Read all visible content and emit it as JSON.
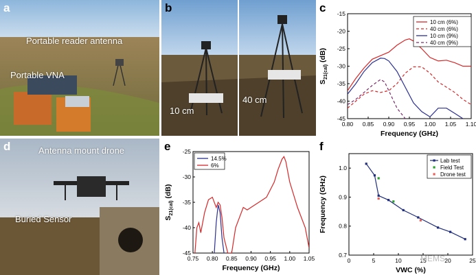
{
  "panels": {
    "a": {
      "label": "a",
      "annotations": [
        "Portable reader antenna",
        "Portable VNA"
      ]
    },
    "b": {
      "label": "b",
      "annotations": [
        "10 cm",
        "40 cm"
      ]
    },
    "c": {
      "label": "c"
    },
    "d": {
      "label": "d",
      "annotations": [
        "Antenna mount drone",
        "Buried Sensor"
      ]
    },
    "e": {
      "label": "e"
    },
    "f": {
      "label": "f"
    }
  },
  "watermark": "MEMS",
  "colors": {
    "red": "#d62728",
    "blue": "#2b2f8f",
    "purple": "#7a2a6a",
    "green": "#2ca02c",
    "pink": "#e8605a",
    "navy": "#1f2d7a"
  },
  "chart_data": [
    {
      "id": "c",
      "type": "line",
      "xlabel": "Frequency (GHz)",
      "ylabel": "S21(cal) (dB)",
      "xlim": [
        0.8,
        1.1
      ],
      "ylim": [
        -45,
        -15
      ],
      "xticks": [
        "0.80",
        "0.85",
        "0.90",
        "0.95",
        "1.00",
        "1.05",
        "1.10"
      ],
      "yticks": [
        "-15",
        "-20",
        "-25",
        "-30",
        "-35",
        "-40",
        "-45"
      ],
      "legend_position": "top-right",
      "series": [
        {
          "name": "10 cm (6%)",
          "color": "#d62728",
          "dash": false,
          "x": [
            0.8,
            0.82,
            0.84,
            0.86,
            0.88,
            0.9,
            0.92,
            0.94,
            0.95,
            0.96,
            0.98,
            1.0,
            1.02,
            1.04,
            1.06,
            1.08,
            1.1
          ],
          "y": [
            -37,
            -33.5,
            -30.5,
            -28,
            -27,
            -26,
            -24,
            -22.5,
            -22.2,
            -22.8,
            -25,
            -27.5,
            -28.5,
            -28.3,
            -29,
            -30,
            -30
          ]
        },
        {
          "name": "40 cm (6%)",
          "color": "#d62728",
          "dash": true,
          "x": [
            0.8,
            0.82,
            0.84,
            0.86,
            0.88,
            0.9,
            0.92,
            0.94,
            0.96,
            0.98,
            1.0,
            1.02,
            1.04,
            1.06,
            1.08,
            1.1
          ],
          "y": [
            -42,
            -40,
            -38,
            -37,
            -37.5,
            -37,
            -35,
            -32,
            -30.2,
            -30.2,
            -32,
            -34.5,
            -36,
            -37.5,
            -39.5,
            -41
          ]
        },
        {
          "name": "10 cm (9%)",
          "color": "#2b2f8f",
          "dash": false,
          "x": [
            0.8,
            0.82,
            0.84,
            0.86,
            0.88,
            0.89,
            0.9,
            0.92,
            0.94,
            0.96,
            0.98,
            1.0,
            1.02,
            1.04,
            1.06,
            1.08
          ],
          "y": [
            -38,
            -35,
            -31.5,
            -29,
            -27.7,
            -27.8,
            -28.5,
            -31.5,
            -36,
            -40.5,
            -43,
            -44.5,
            -42,
            -42,
            -43.5,
            -45
          ]
        },
        {
          "name": "40 cm (9%)",
          "color": "#7a2a6a",
          "dash": true,
          "x": [
            0.8,
            0.82,
            0.84,
            0.86,
            0.88,
            0.89,
            0.9,
            0.92,
            0.94
          ],
          "y": [
            -41,
            -39.5,
            -37.5,
            -35.5,
            -33.8,
            -34.5,
            -37,
            -42,
            -45
          ]
        }
      ]
    },
    {
      "id": "e",
      "type": "line",
      "xlabel": "Frequency (GHz)",
      "ylabel": "S21(cal) (dB)",
      "xlim": [
        0.75,
        1.05
      ],
      "ylim": [
        -45,
        -25
      ],
      "xticks": [
        "0.75",
        "0.80",
        "0.85",
        "0.90",
        "0.95",
        "1.00",
        "1.05"
      ],
      "yticks": [
        "-25",
        "-30",
        "-35",
        "-40",
        "-45"
      ],
      "legend_position": "top-left",
      "series": [
        {
          "name": "14.5%",
          "color": "#2b2f8f",
          "x": [
            0.805,
            0.81,
            0.815,
            0.82,
            0.825,
            0.83
          ],
          "y": [
            -45,
            -39,
            -35.5,
            -37,
            -42,
            -45
          ]
        },
        {
          "name": "6%",
          "color": "#d62728",
          "x": [
            0.755,
            0.76,
            0.765,
            0.77,
            0.78,
            0.79,
            0.8,
            0.81,
            0.815,
            0.82,
            0.825,
            0.83,
            0.84,
            0.85,
            0.86,
            0.87,
            0.88,
            0.89,
            0.9,
            0.92,
            0.94,
            0.96,
            0.97,
            0.98,
            0.985,
            0.99,
            1.0,
            1.02,
            1.04,
            1.05
          ],
          "y": [
            -45,
            -40,
            -39,
            -41,
            -37,
            -34.5,
            -34,
            -36,
            -35,
            -35.5,
            -38,
            -42,
            -45,
            -45,
            -40,
            -38,
            -36,
            -36.5,
            -36,
            -35,
            -34,
            -31,
            -28.5,
            -26.5,
            -26,
            -27,
            -31,
            -36,
            -40,
            -44
          ]
        }
      ]
    },
    {
      "id": "f",
      "type": "scatter",
      "xlabel": "VWC (%)",
      "ylabel": "Frequency (GHz)",
      "xlim": [
        0,
        25
      ],
      "ylim": [
        0.7,
        1.05
      ],
      "xticks": [
        "0",
        "5",
        "10",
        "15",
        "20",
        "25"
      ],
      "yticks": [
        "0.7",
        "0.8",
        "0.9",
        "1.0"
      ],
      "legend_position": "top-right",
      "series": [
        {
          "name": "Lab test",
          "color": "#1f2d7a",
          "line": true,
          "x": [
            3.5,
            5.2,
            6,
            8,
            11,
            14,
            18,
            20.5,
            23.5
          ],
          "y": [
            1.015,
            0.975,
            0.905,
            0.89,
            0.855,
            0.83,
            0.795,
            0.78,
            0.755
          ]
        },
        {
          "name": "Field Test",
          "color": "#2ca02c",
          "line": false,
          "x": [
            6,
            9
          ],
          "y": [
            0.965,
            0.885
          ]
        },
        {
          "name": "Drone test",
          "color": "#e8605a",
          "line": false,
          "x": [
            6,
            14.5
          ],
          "y": [
            0.895,
            0.82
          ]
        }
      ]
    }
  ]
}
